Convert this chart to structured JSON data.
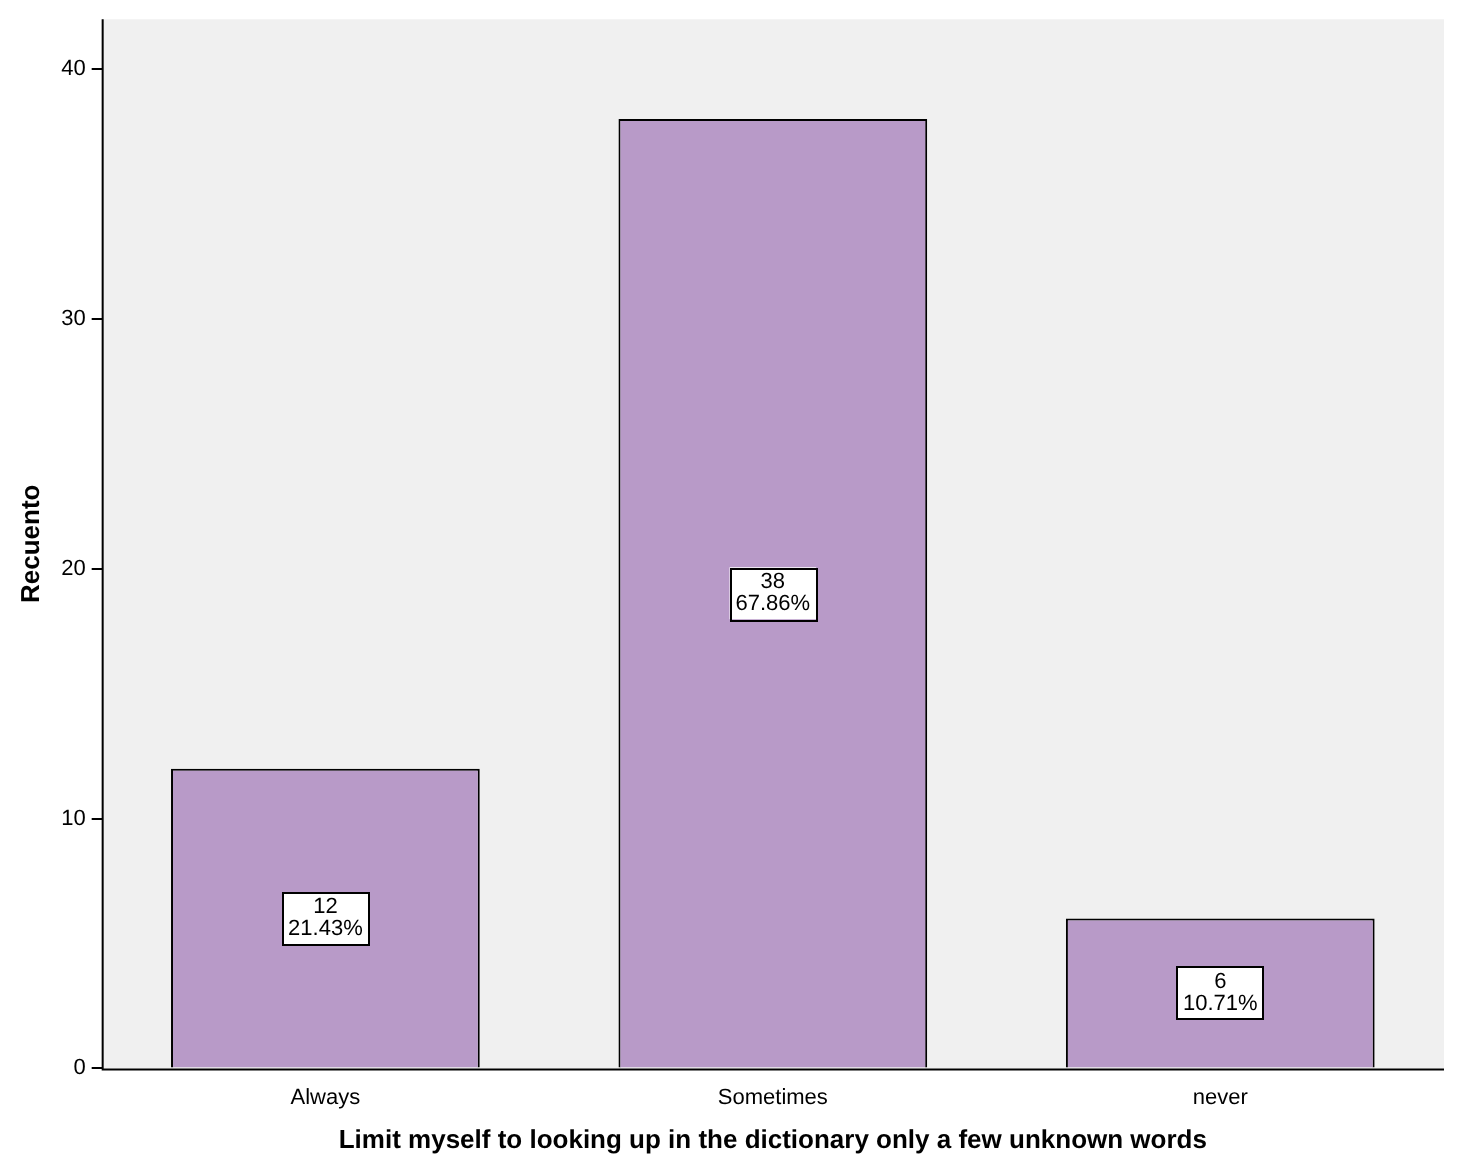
{
  "chart_data": {
    "type": "bar",
    "xlabel": "Limit myself to looking up in the dictionary only a few unknown words",
    "ylabel": "Recuento",
    "categories": [
      "Always",
      "Sometimes",
      "never"
    ],
    "values": [
      12,
      38,
      6
    ],
    "value_labels": [
      "12\n21.43%",
      "38\n67.86%",
      "6\n10.71%"
    ],
    "color": "#b89ac8",
    "ylim": [
      0,
      42
    ],
    "yticks": [
      0,
      10,
      20,
      30,
      40
    ],
    "grid": false,
    "legend": false
  }
}
